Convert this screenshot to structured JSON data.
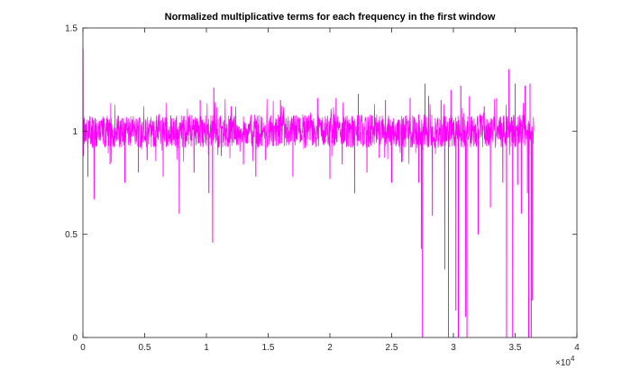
{
  "chart_data": {
    "type": "line",
    "title": "Normalized multiplicative terms for each frequency in the first window",
    "xlabel": "",
    "ylabel": "",
    "xlim": [
      0,
      40000
    ],
    "ylim": [
      0,
      1.5
    ],
    "x_ticks": [
      0,
      5000,
      10000,
      15000,
      20000,
      25000,
      30000,
      35000,
      40000
    ],
    "x_tick_labels": [
      "0",
      "0.5",
      "1",
      "1.5",
      "2",
      "2.5",
      "3",
      "3.5",
      "4"
    ],
    "y_ticks": [
      0,
      0.5,
      1,
      1.5
    ],
    "y_tick_labels": [
      "0",
      "0.5",
      "1",
      "1.5"
    ],
    "x_exponent_label": {
      "base": "×10",
      "exponent": "4"
    },
    "grid": false,
    "box": true,
    "series": [
      {
        "color": "#ff00ff",
        "x_range": [
          1,
          36500
        ],
        "baseline": 1.0,
        "noise_band": [
          0.92,
          1.08
        ],
        "points": [
          [
            1,
            1.0
          ],
          [
            10,
            1.4
          ],
          [
            30,
            0.88
          ],
          [
            120,
            1.02
          ],
          [
            400,
            0.78
          ],
          [
            900,
            0.67
          ],
          [
            2200,
            0.84
          ],
          [
            3000,
            1.05
          ],
          [
            3400,
            0.75
          ],
          [
            4500,
            0.8
          ],
          [
            5200,
            0.86
          ],
          [
            6500,
            0.78
          ],
          [
            7800,
            0.6
          ],
          [
            9000,
            0.8
          ],
          [
            9500,
            1.15
          ],
          [
            10200,
            0.7
          ],
          [
            10500,
            0.46
          ],
          [
            10600,
            1.21
          ],
          [
            11200,
            0.88
          ],
          [
            12000,
            1.12
          ],
          [
            13000,
            0.84
          ],
          [
            14000,
            0.78
          ],
          [
            14800,
            0.86
          ],
          [
            16000,
            1.15
          ],
          [
            17000,
            0.78
          ],
          [
            18000,
            0.92
          ],
          [
            19000,
            1.16
          ],
          [
            20000,
            0.77
          ],
          [
            20500,
            1.16
          ],
          [
            21000,
            0.84
          ],
          [
            22000,
            0.7
          ],
          [
            22300,
            1.18
          ],
          [
            23000,
            0.8
          ],
          [
            24000,
            0.87
          ],
          [
            24500,
            1.15
          ],
          [
            25000,
            0.75
          ],
          [
            25800,
            0.85
          ],
          [
            26500,
            1.16
          ],
          [
            27200,
            0.75
          ],
          [
            27400,
            0.43
          ],
          [
            27500,
            0.0
          ],
          [
            27700,
            1.23
          ],
          [
            28000,
            1.17
          ],
          [
            28300,
            0.59
          ],
          [
            29000,
            1.15
          ],
          [
            29300,
            0.33
          ],
          [
            29600,
            0.0
          ],
          [
            29800,
            1.2
          ],
          [
            30200,
            0.13
          ],
          [
            30400,
            0.0
          ],
          [
            30600,
            1.22
          ],
          [
            31000,
            0.1
          ],
          [
            31100,
            0.0
          ],
          [
            31300,
            1.17
          ],
          [
            32000,
            0.5
          ],
          [
            32500,
            1.12
          ],
          [
            33000,
            0.63
          ],
          [
            33500,
            1.16
          ],
          [
            34000,
            0.75
          ],
          [
            34300,
            0.0
          ],
          [
            34500,
            1.3
          ],
          [
            34800,
            0.0
          ],
          [
            35000,
            1.23
          ],
          [
            35200,
            0.74
          ],
          [
            35500,
            0.6
          ],
          [
            35800,
            1.22
          ],
          [
            36000,
            0.7
          ],
          [
            36100,
            0.0
          ],
          [
            36200,
            1.23
          ],
          [
            36300,
            0.0
          ],
          [
            36400,
            0.18
          ],
          [
            36500,
            1.02
          ]
        ]
      }
    ]
  }
}
